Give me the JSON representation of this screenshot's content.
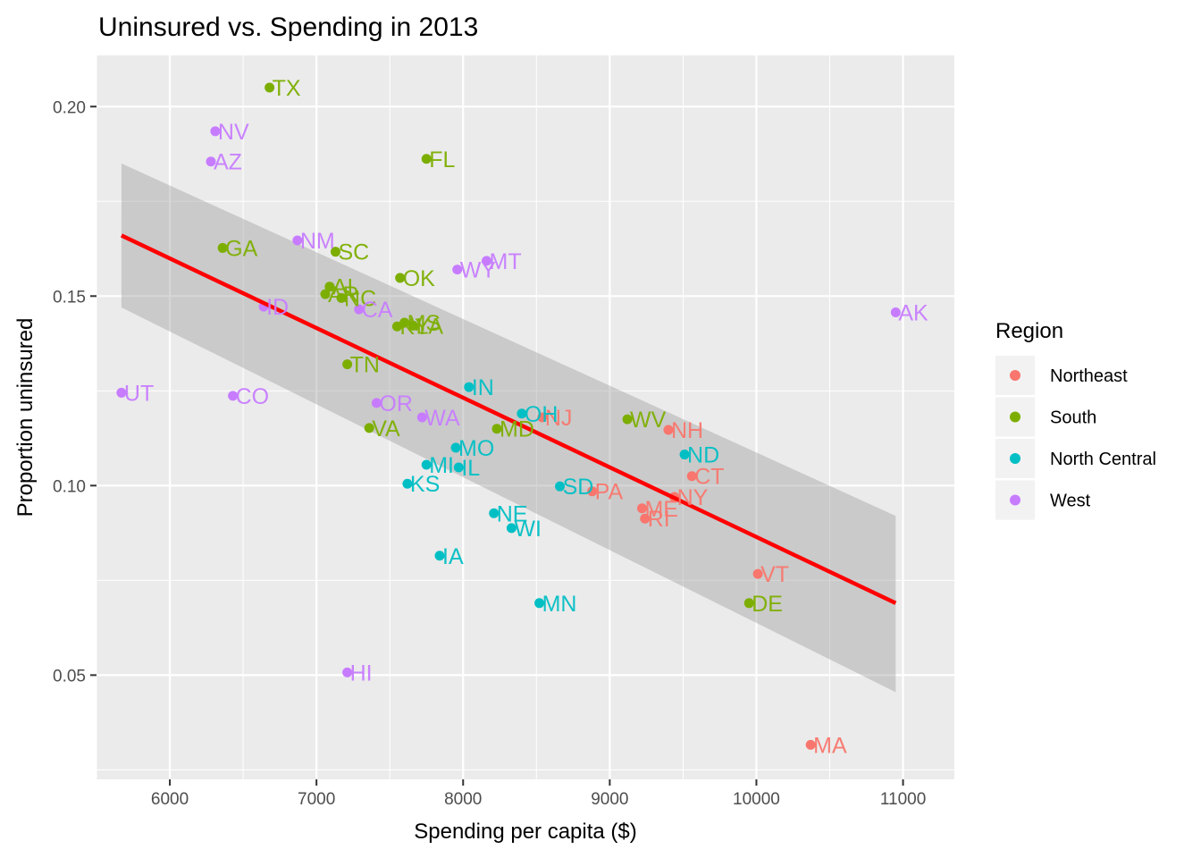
{
  "chart_data": {
    "type": "scatter",
    "title": "Uninsured vs. Spending in 2013",
    "xlabel": "Spending per capita ($)",
    "ylabel": "Proportion uninsured",
    "xlim": [
      5500,
      11350
    ],
    "ylim": [
      0.0225,
      0.2135
    ],
    "x_ticks": [
      6000,
      7000,
      8000,
      9000,
      10000,
      11000
    ],
    "x_tick_labels": [
      "6000",
      "7000",
      "8000",
      "9000",
      "10000",
      "11000"
    ],
    "y_ticks": [
      0.05,
      0.1,
      0.15,
      0.2
    ],
    "y_tick_labels": [
      "0.05",
      "0.10",
      "0.15",
      "0.20"
    ],
    "grid": true,
    "legend": {
      "title": "Region",
      "placement": "right",
      "entries": [
        {
          "name": "Northeast",
          "color": "#F8766D"
        },
        {
          "name": "South",
          "color": "#7CAE00"
        },
        {
          "name": "North Central",
          "color": "#00BFC4"
        },
        {
          "name": "West",
          "color": "#C77CFF"
        }
      ]
    },
    "trend": {
      "x": [
        5670,
        10950
      ],
      "y": [
        0.166,
        0.069
      ],
      "color": "#FF0000",
      "band_upper": [
        0.185,
        0.092
      ],
      "band_lower": [
        0.147,
        0.0455
      ],
      "band_color": "#999999"
    },
    "series": [
      {
        "name": "Northeast",
        "color": "#F8766D",
        "points": [
          {
            "label": "NJ",
            "x": 8540,
            "y": 0.118
          },
          {
            "label": "NH",
            "x": 9400,
            "y": 0.1147
          },
          {
            "label": "CT",
            "x": 9560,
            "y": 0.1025
          },
          {
            "label": "PA",
            "x": 8880,
            "y": 0.0985
          },
          {
            "label": "NY",
            "x": 9440,
            "y": 0.097
          },
          {
            "label": "ME",
            "x": 9220,
            "y": 0.094
          },
          {
            "label": "RI",
            "x": 9240,
            "y": 0.0913
          },
          {
            "label": "VT",
            "x": 10010,
            "y": 0.0767
          },
          {
            "label": "MA",
            "x": 10370,
            "y": 0.0316
          }
        ]
      },
      {
        "name": "South",
        "color": "#7CAE00",
        "points": [
          {
            "label": "TX",
            "x": 6680,
            "y": 0.205
          },
          {
            "label": "FL",
            "x": 7750,
            "y": 0.1862
          },
          {
            "label": "GA",
            "x": 6360,
            "y": 0.1627
          },
          {
            "label": "SC",
            "x": 7130,
            "y": 0.1617
          },
          {
            "label": "OK",
            "x": 7570,
            "y": 0.1548
          },
          {
            "label": "AL",
            "x": 7090,
            "y": 0.1525
          },
          {
            "label": "AR",
            "x": 7060,
            "y": 0.1505
          },
          {
            "label": "NC",
            "x": 7170,
            "y": 0.1495
          },
          {
            "label": "KY",
            "x": 7550,
            "y": 0.142
          },
          {
            "label": "MS",
            "x": 7600,
            "y": 0.143
          },
          {
            "label": "LA",
            "x": 7660,
            "y": 0.1422
          },
          {
            "label": "TN",
            "x": 7210,
            "y": 0.132
          },
          {
            "label": "WV",
            "x": 9120,
            "y": 0.1175
          },
          {
            "label": "MD",
            "x": 8230,
            "y": 0.115
          },
          {
            "label": "VA",
            "x": 7360,
            "y": 0.1152
          },
          {
            "label": "DE",
            "x": 9950,
            "y": 0.069
          }
        ]
      },
      {
        "name": "North Central",
        "color": "#00BFC4",
        "points": [
          {
            "label": "IN",
            "x": 8040,
            "y": 0.126
          },
          {
            "label": "OH",
            "x": 8400,
            "y": 0.119
          },
          {
            "label": "ND",
            "x": 9510,
            "y": 0.1082
          },
          {
            "label": "MO",
            "x": 7950,
            "y": 0.11
          },
          {
            "label": "MI",
            "x": 7750,
            "y": 0.1055
          },
          {
            "label": "IL",
            "x": 7970,
            "y": 0.1048
          },
          {
            "label": "KS",
            "x": 7620,
            "y": 0.1005
          },
          {
            "label": "SD",
            "x": 8660,
            "y": 0.0998
          },
          {
            "label": "NE",
            "x": 8210,
            "y": 0.0927
          },
          {
            "label": "WI",
            "x": 8330,
            "y": 0.0888
          },
          {
            "label": "IA",
            "x": 7840,
            "y": 0.0815
          },
          {
            "label": "MN",
            "x": 8520,
            "y": 0.069
          }
        ]
      },
      {
        "name": "West",
        "color": "#C77CFF",
        "points": [
          {
            "label": "NV",
            "x": 6310,
            "y": 0.1935
          },
          {
            "label": "AZ",
            "x": 6280,
            "y": 0.1855
          },
          {
            "label": "NM",
            "x": 6870,
            "y": 0.1647
          },
          {
            "label": "MT",
            "x": 8160,
            "y": 0.1593
          },
          {
            "label": "WY",
            "x": 7960,
            "y": 0.157
          },
          {
            "label": "ID",
            "x": 6640,
            "y": 0.1472
          },
          {
            "label": "CA",
            "x": 7290,
            "y": 0.1465
          },
          {
            "label": "AK",
            "x": 10950,
            "y": 0.1457
          },
          {
            "label": "UT",
            "x": 5670,
            "y": 0.1245
          },
          {
            "label": "CO",
            "x": 6430,
            "y": 0.1237
          },
          {
            "label": "OR",
            "x": 7410,
            "y": 0.1218
          },
          {
            "label": "WA",
            "x": 7720,
            "y": 0.118
          },
          {
            "label": "HI",
            "x": 7210,
            "y": 0.0507
          }
        ]
      }
    ]
  }
}
